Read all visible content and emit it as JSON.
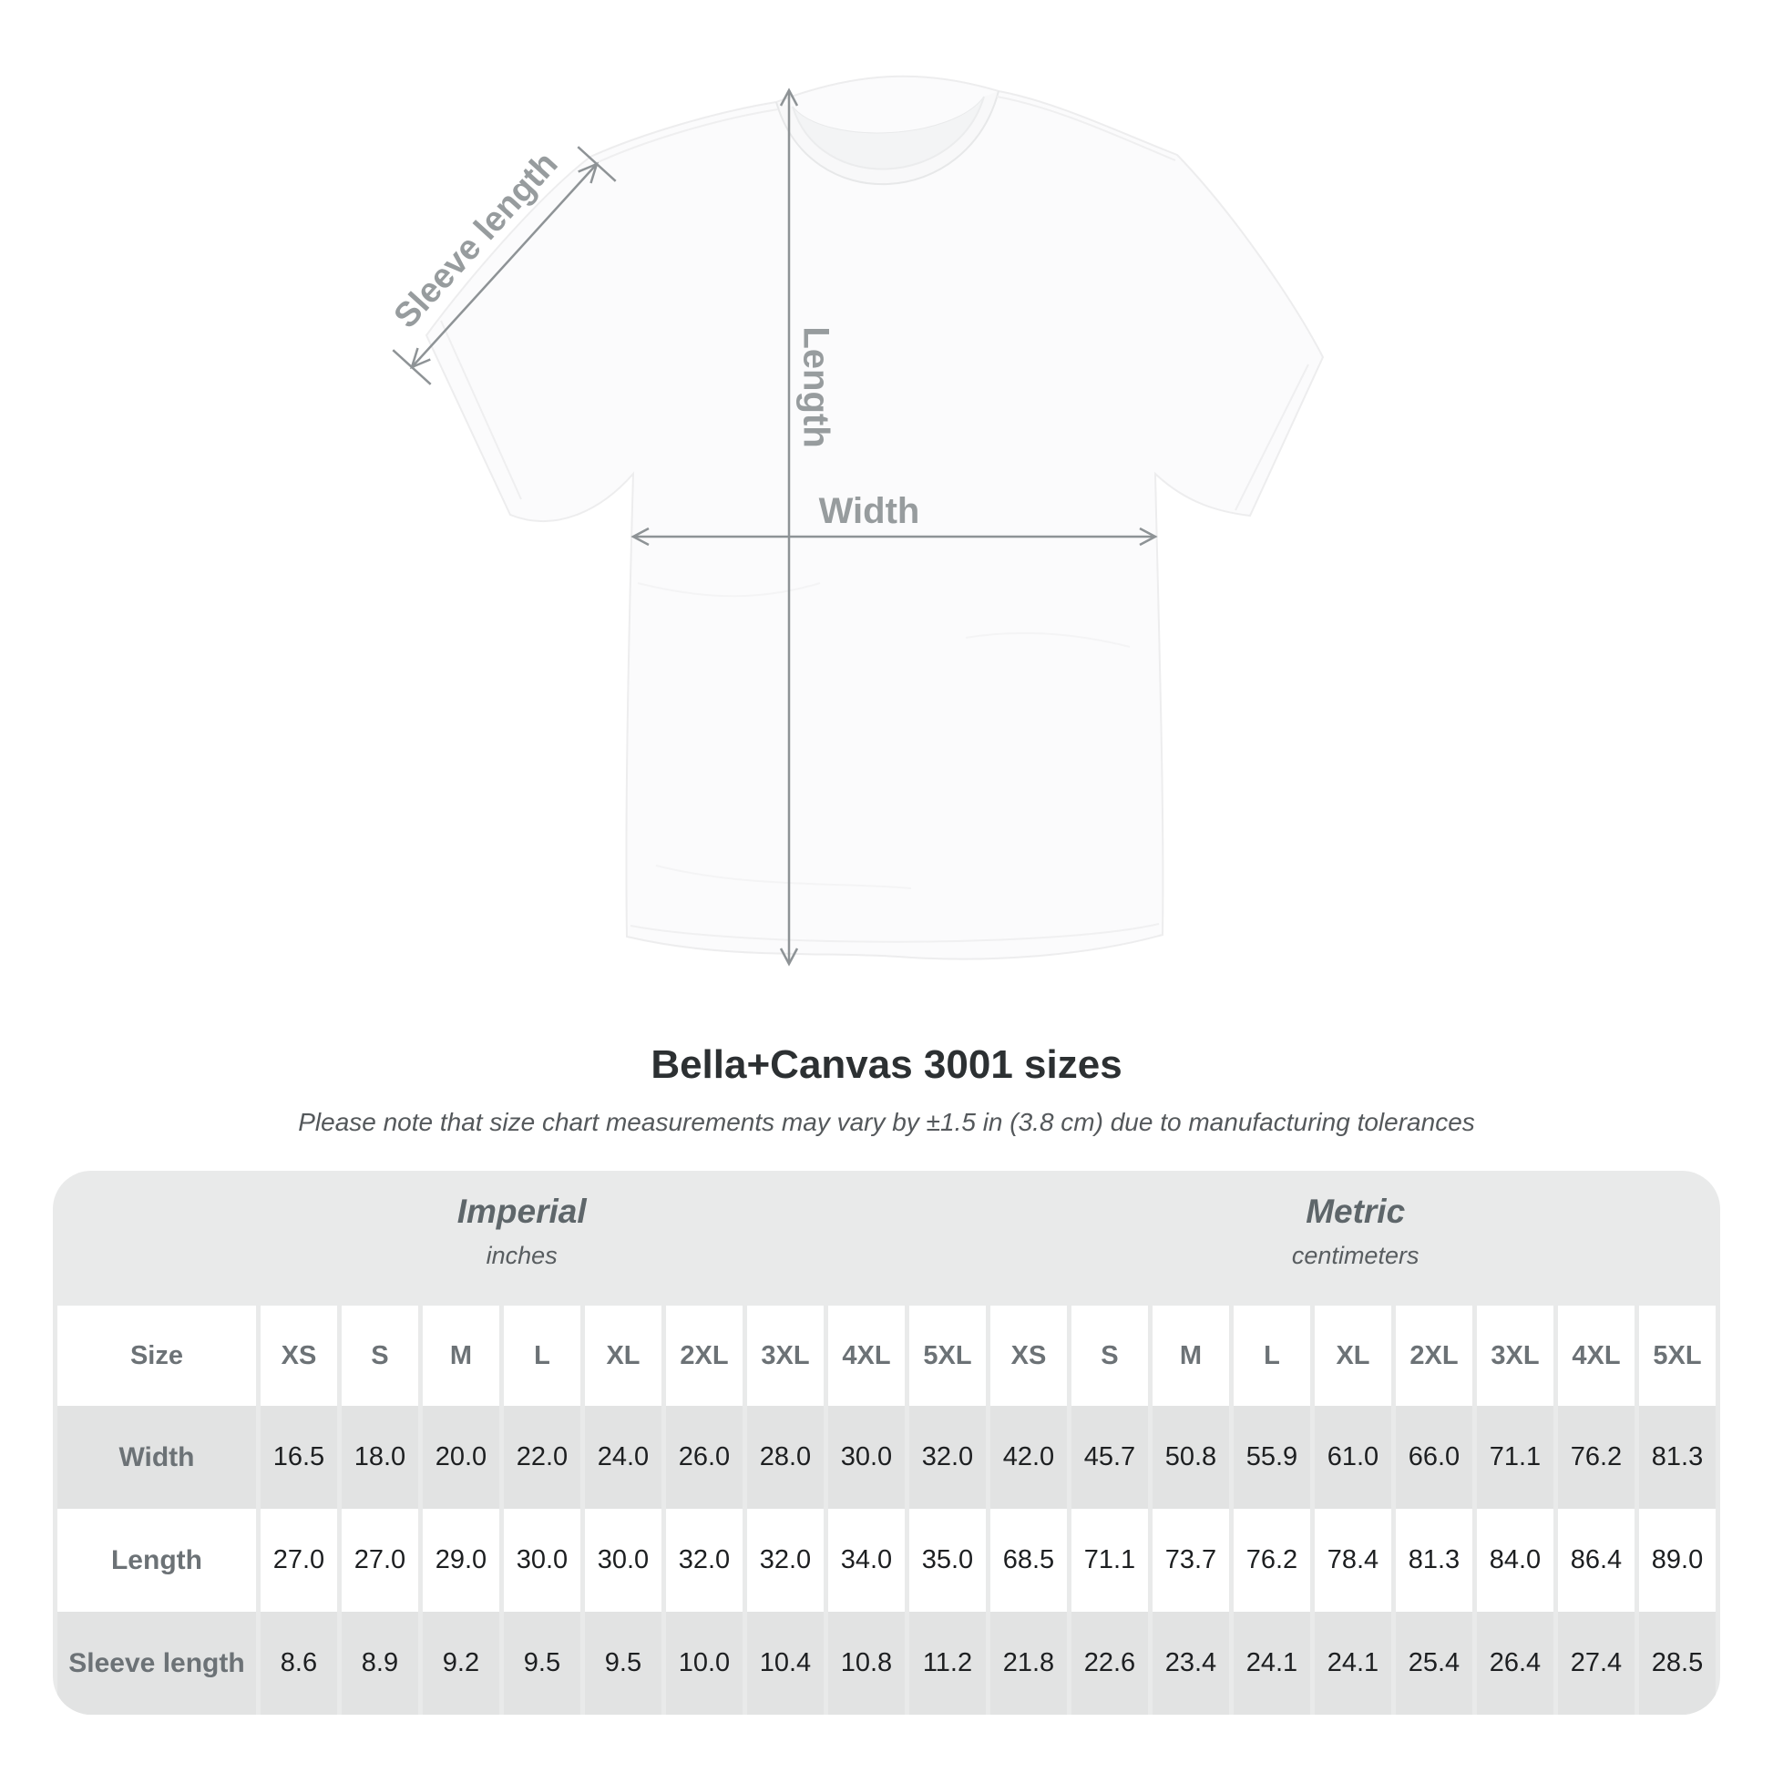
{
  "title": "Bella+Canvas 3001 sizes",
  "subtitle": "Please note that size chart measurements may vary by ±1.5 in (3.8 cm) due to manufacturing tolerances",
  "diagram": {
    "sleeve_label": "Sleeve length",
    "length_label": "Length",
    "width_label": "Width"
  },
  "size_table": {
    "corner_header": "Size",
    "unit_groups": [
      {
        "name": "Imperial",
        "unit": "inches"
      },
      {
        "name": "Metric",
        "unit": "centimeters"
      }
    ],
    "sizes": [
      "XS",
      "S",
      "M",
      "L",
      "XL",
      "2XL",
      "3XL",
      "4XL",
      "5XL"
    ],
    "rows": [
      {
        "label": "Width",
        "imperial": [
          "16.5",
          "18.0",
          "20.0",
          "22.0",
          "24.0",
          "26.0",
          "28.0",
          "30.0",
          "32.0"
        ],
        "metric": [
          "42.0",
          "45.7",
          "50.8",
          "55.9",
          "61.0",
          "66.0",
          "71.1",
          "76.2",
          "81.3"
        ]
      },
      {
        "label": "Length",
        "imperial": [
          "27.0",
          "27.0",
          "29.0",
          "30.0",
          "30.0",
          "32.0",
          "32.0",
          "34.0",
          "35.0"
        ],
        "metric": [
          "68.5",
          "71.1",
          "73.7",
          "76.2",
          "78.4",
          "81.3",
          "84.0",
          "86.4",
          "89.0"
        ]
      },
      {
        "label": "Sleeve length",
        "imperial": [
          "8.6",
          "8.9",
          "9.2",
          "9.5",
          "9.5",
          "10.0",
          "10.4",
          "10.8",
          "11.2"
        ],
        "metric": [
          "21.8",
          "22.6",
          "23.4",
          "24.1",
          "24.1",
          "25.4",
          "26.4",
          "27.4",
          "28.5"
        ]
      }
    ]
  },
  "chart_data": {
    "type": "table",
    "title": "Bella+Canvas 3001 sizes",
    "note": "Measurements may vary by ±1.5 in (3.8 cm) due to manufacturing tolerances",
    "units": {
      "imperial": "inches",
      "metric": "centimeters"
    },
    "sizes": [
      "XS",
      "S",
      "M",
      "L",
      "XL",
      "2XL",
      "3XL",
      "4XL",
      "5XL"
    ],
    "measurements": {
      "width": {
        "imperial_in": [
          16.5,
          18.0,
          20.0,
          22.0,
          24.0,
          26.0,
          28.0,
          30.0,
          32.0
        ],
        "metric_cm": [
          42.0,
          45.7,
          50.8,
          55.9,
          61.0,
          66.0,
          71.1,
          76.2,
          81.3
        ]
      },
      "length": {
        "imperial_in": [
          27.0,
          27.0,
          29.0,
          30.0,
          30.0,
          32.0,
          32.0,
          34.0,
          35.0
        ],
        "metric_cm": [
          68.5,
          71.1,
          73.7,
          76.2,
          78.4,
          81.3,
          84.0,
          86.4,
          89.0
        ]
      },
      "sleeve_length": {
        "imperial_in": [
          8.6,
          8.9,
          9.2,
          9.5,
          9.5,
          10.0,
          10.4,
          10.8,
          11.2
        ],
        "metric_cm": [
          21.8,
          22.6,
          23.4,
          24.1,
          24.1,
          25.4,
          26.4,
          27.4,
          28.5
        ]
      }
    }
  },
  "colors": {
    "card_bg": "#e9eaea",
    "row_shade": "#e2e3e3",
    "label_text": "#6c7276",
    "value_text": "#1d1f21",
    "annotation_gray": "#8e9396"
  }
}
